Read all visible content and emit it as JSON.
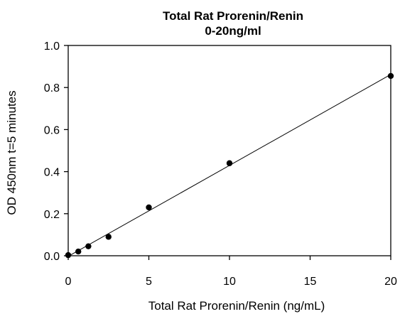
{
  "chart_data": {
    "type": "scatter",
    "title": "Total Rat Prorenin/Renin",
    "subtitle": "0-20ng/ml",
    "xlabel": "Total Rat Prorenin/Renin (ng/mL)",
    "ylabel": "OD 450nm t=5 minutes",
    "xlim": [
      0,
      20
    ],
    "ylim": [
      0.0,
      1.0
    ],
    "x_ticks": [
      0,
      5,
      10,
      15,
      20
    ],
    "x_tick_labels": [
      "0",
      "5",
      "10",
      "15",
      "20"
    ],
    "y_ticks": [
      0.0,
      0.2,
      0.4,
      0.6,
      0.8,
      1.0
    ],
    "y_tick_labels": [
      "0.0",
      "0.2",
      "0.4",
      "0.6",
      "0.8",
      "1.0"
    ],
    "grid": false,
    "legend": "none",
    "series": [
      {
        "x": [
          0,
          0.625,
          1.25,
          2.5,
          5,
          10,
          20
        ],
        "y": [
          0.003,
          0.02,
          0.045,
          0.09,
          0.23,
          0.44,
          0.855
        ],
        "marker_color": "#000000",
        "trendline": "linear"
      }
    ]
  }
}
